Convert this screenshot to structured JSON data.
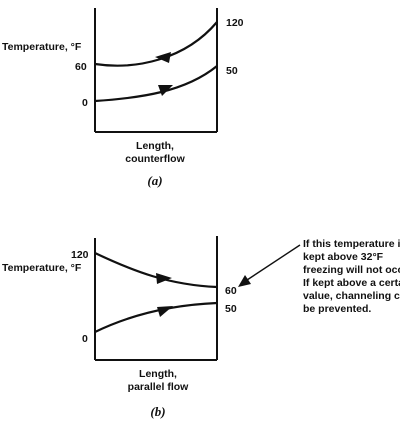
{
  "diagram_a": {
    "y_axis_label": "Temperature, °F",
    "left_values": [
      "60",
      "0"
    ],
    "right_values": [
      "120",
      "50"
    ],
    "x_label_line1": "Length,",
    "x_label_line2": "counterflow",
    "caption": "(a)"
  },
  "diagram_b": {
    "y_axis_label": "Temperature, °F",
    "left_values": [
      "120",
      "0"
    ],
    "right_values": [
      "60",
      "50"
    ],
    "x_label_line1": "Length,",
    "x_label_line2": "parallel flow",
    "caption": "(b)",
    "note_lines": [
      "If this temperature is",
      "kept above 32°F",
      "freezing will not occur.",
      "If kept above a certain",
      "value, channeling can",
      "be prevented."
    ]
  },
  "colors": {
    "ink": "#111111",
    "background": "#ffffff"
  }
}
